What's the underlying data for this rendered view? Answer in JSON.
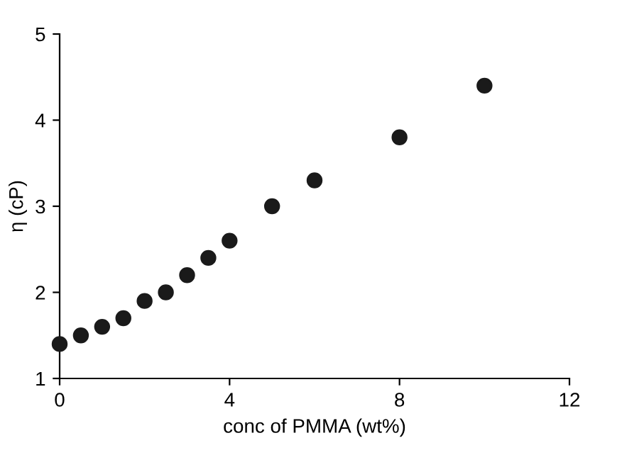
{
  "chart_data": {
    "type": "scatter",
    "xlabel": "conc of PMMA (wt%)",
    "ylabel": "η (cP)",
    "x": [
      0,
      0.5,
      1,
      1.5,
      2,
      2.5,
      3,
      3.5,
      4,
      5,
      6,
      8,
      10
    ],
    "series": [
      {
        "color": "#1a1a1a",
        "values": [
          1.4,
          1.5,
          1.6,
          1.7,
          1.9,
          2.0,
          2.2,
          2.4,
          2.6,
          3.0,
          3.3,
          3.8,
          4.4
        ]
      }
    ],
    "xlim": [
      0,
      12
    ],
    "ylim": [
      1,
      5
    ],
    "xticks": [
      0,
      4,
      8,
      12
    ],
    "yticks": [
      1,
      2,
      3,
      4,
      5
    ],
    "marker": "circle",
    "grid": false,
    "legend": false
  }
}
